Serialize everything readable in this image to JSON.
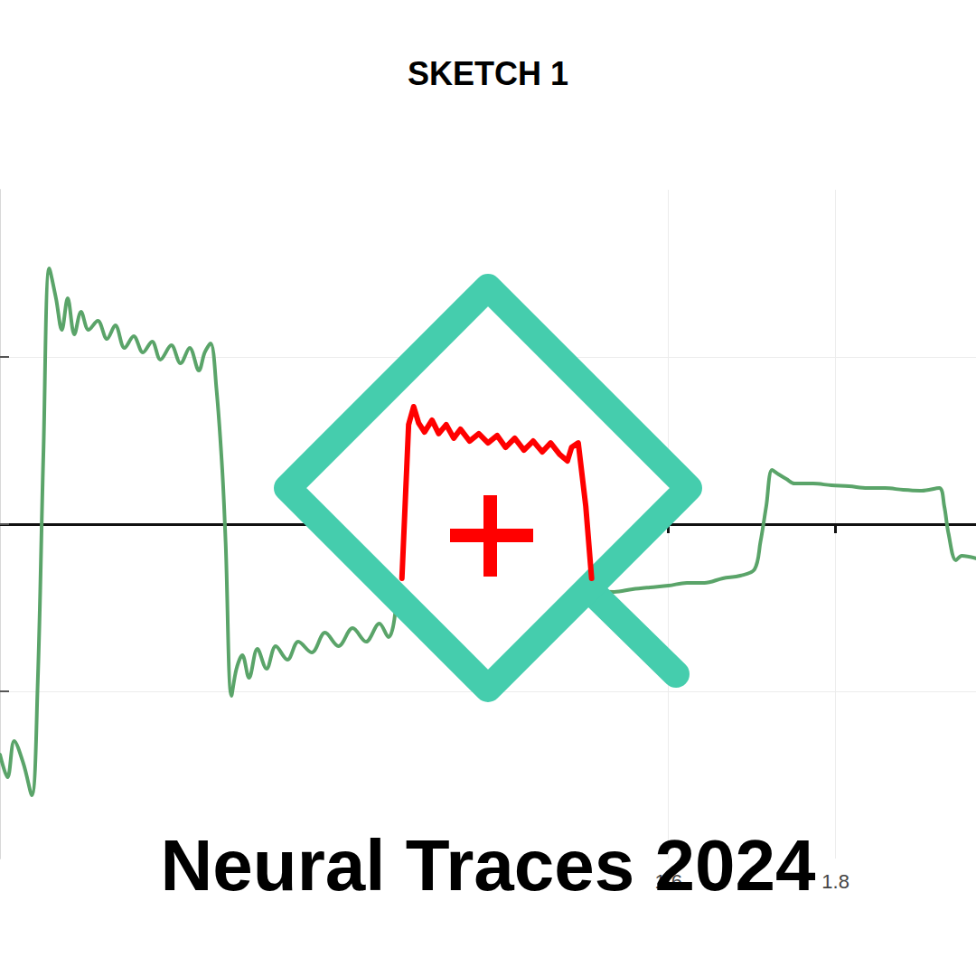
{
  "chart_data": {
    "type": "line",
    "title": "SKETCH 1",
    "subtitle": "Neural Traces 2024",
    "xlim": [
      0.8,
      1.968
    ],
    "xticks": [
      1.6,
      1.8
    ],
    "ylim": [
      -2,
      2
    ],
    "yticks": [
      -1,
      0,
      1
    ],
    "grid": true,
    "tick_labels": "x",
    "series": [
      {
        "color": "#5aa469",
        "x": [
          0.8,
          0.809,
          0.817,
          0.828,
          0.838,
          0.845,
          0.852,
          0.859,
          0.867,
          0.874,
          0.881,
          0.889,
          0.897,
          0.906,
          0.917,
          0.928,
          0.938,
          0.949,
          0.96,
          0.971,
          0.982,
          0.992,
          1.005,
          1.016,
          1.027,
          1.038,
          1.045,
          1.052,
          1.059,
          1.066,
          1.07,
          1.077,
          1.083,
          1.09,
          1.098,
          1.108,
          1.119,
          1.13,
          1.144,
          1.157,
          1.173,
          1.189,
          1.205,
          1.222,
          1.238,
          1.254,
          1.265,
          1.272,
          1.281,
          1.289,
          1.297,
          1.341,
          1.405,
          1.47,
          1.501,
          1.508,
          1.535,
          1.557,
          1.578,
          1.6,
          1.622,
          1.643,
          1.665,
          1.686,
          1.703,
          1.71,
          1.717,
          1.724,
          1.732,
          1.741,
          1.751,
          1.773,
          1.795,
          1.816,
          1.838,
          1.859,
          1.881,
          1.903,
          1.924,
          1.93,
          1.935,
          1.944,
          1.951,
          1.968
        ],
        "values": [
          -1.378,
          -1.514,
          -1.297,
          -1.432,
          -1.622,
          -0.973,
          0.432,
          1.53,
          1.351,
          1.162,
          1.351,
          1.135,
          1.27,
          1.162,
          1.216,
          1.108,
          1.189,
          1.054,
          1.124,
          1.027,
          1.092,
          0.984,
          1.07,
          0.962,
          1.054,
          0.919,
          1.027,
          1.081,
          0.811,
          0.324,
          -0.108,
          -1.027,
          -0.865,
          -0.784,
          -0.919,
          -0.746,
          -0.865,
          -0.73,
          -0.811,
          -0.703,
          -0.768,
          -0.649,
          -0.73,
          -0.622,
          -0.703,
          -0.595,
          -0.676,
          -0.568,
          -0.108,
          0.703,
          0.595,
          0.541,
          0.486,
          0.459,
          0.432,
          -0.378,
          -0.405,
          -0.389,
          -0.378,
          -0.368,
          -0.351,
          -0.351,
          -0.324,
          -0.308,
          -0.27,
          -0.108,
          0.108,
          0.324,
          0.297,
          0.27,
          0.243,
          0.243,
          0.232,
          0.227,
          0.216,
          0.216,
          0.205,
          0.2,
          0.216,
          0.108,
          -0.054,
          -0.216,
          -0.189,
          -0.205
        ]
      },
      {
        "color": "#ff0000",
        "x": [
          1.281,
          1.289,
          1.295,
          1.301,
          1.308,
          1.317,
          1.325,
          1.334,
          1.343,
          1.351,
          1.362,
          1.373,
          1.384,
          1.395,
          1.405,
          1.416,
          1.427,
          1.438,
          1.449,
          1.459,
          1.47,
          1.479,
          1.484,
          1.492,
          1.501,
          1.508
        ],
        "values": [
          -0.324,
          0.595,
          0.703,
          0.605,
          0.551,
          0.622,
          0.541,
          0.595,
          0.514,
          0.568,
          0.497,
          0.541,
          0.486,
          0.53,
          0.459,
          0.514,
          0.443,
          0.497,
          0.432,
          0.486,
          0.416,
          0.378,
          0.459,
          0.486,
          0.108,
          -0.324
        ]
      }
    ]
  }
}
